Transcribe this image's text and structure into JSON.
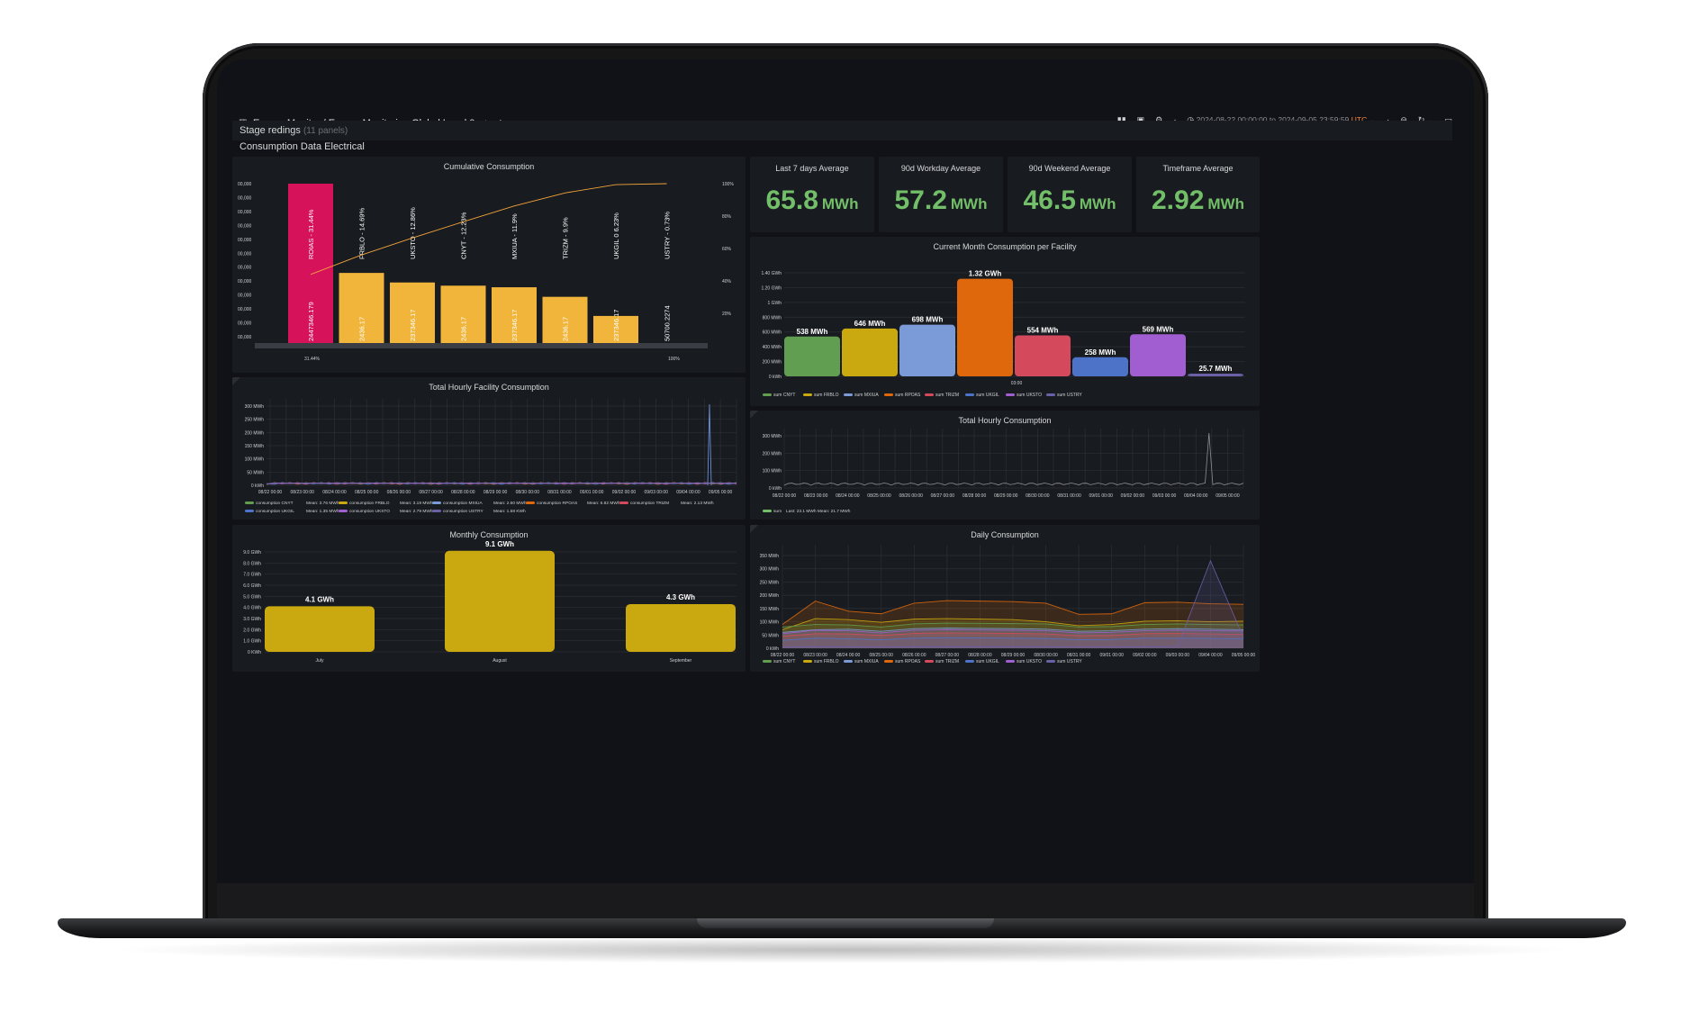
{
  "header": {
    "breadcrumb": "Energy Monitor / Energy Monitoring Global Level 0",
    "time_range": "2024-08-22 00:00:00 to 2024-09-05 23:59:59",
    "timezone": "UTC"
  },
  "rows": {
    "stage": {
      "title": "Stage redings",
      "count": "(11 panels)"
    },
    "consumption": {
      "title": "Consumption Data Electrical"
    }
  },
  "colors": {
    "green": "#73bf69",
    "yellow": "#d4a910",
    "pareto_yellow": "#f2b53b",
    "pareto_pink": "#d6125a",
    "blue": "#6d8fd6",
    "orange": "#e0680c",
    "red": "#d44a5c",
    "purple": "#a15ed0"
  },
  "stats": [
    {
      "label": "Last 7 days Average",
      "value": "65.8",
      "unit": "MWh"
    },
    {
      "label": "90d Workday Average",
      "value": "57.2",
      "unit": "MWh"
    },
    {
      "label": "90d Weekend Average",
      "value": "46.5",
      "unit": "MWh"
    },
    {
      "label": "Timeframe Average",
      "value": "2.92",
      "unit": "MWh"
    }
  ],
  "panels": {
    "cumulative": {
      "title": "Cumulative Consumption"
    },
    "current_month": {
      "title": "Current Month Consumption per Facility"
    },
    "hourly_facility": {
      "title": "Total Hourly Facility Consumption"
    },
    "hourly_total": {
      "title": "Total Hourly Consumption"
    },
    "monthly": {
      "title": "Monthly Consumption"
    },
    "daily": {
      "title": "Daily Consumption"
    }
  },
  "chart_data": [
    {
      "id": "cumulative",
      "type": "bar",
      "title": "Cumulative Consumption",
      "categories": [
        "ROIAS - 31.44%",
        "FRBLO - 14.69%",
        "UKSTO - 12.86%",
        "CNYT - 12.23%",
        "MXIUA - 11.9%",
        "TRIZM - 9.9%",
        "UKGIL 0 6.23%",
        "USTRY - 0.73%"
      ],
      "value_labels": [
        "2447346.179",
        "2436.17",
        "237346.17",
        "2436.17",
        "237346.17",
        "2436.17",
        "237346.17",
        "50700.2274"
      ],
      "values": [
        100,
        44,
        38,
        36,
        35,
        29,
        17,
        0
      ],
      "cumulative_pct": [
        31.44,
        46.13,
        58.99,
        71.22,
        83.12,
        93.02,
        99.25,
        100
      ],
      "y_ticks": [
        "00,000",
        "00,000",
        "00,000",
        "00,000",
        "00,000",
        "00,000",
        "00,000",
        "00,000",
        "00,000",
        "00,000",
        "00,000",
        "00,000"
      ],
      "y2_ticks": [
        "100%",
        "80%",
        "60%",
        "40%",
        "20%"
      ],
      "x_ticks": [
        "31.44%",
        "100%"
      ]
    },
    {
      "id": "current_month",
      "type": "bar",
      "title": "Current Month Consumption per Facility",
      "categories": [
        "sum CNYT",
        "sum FRBLO",
        "sum MXIUA",
        "sum RPOAS",
        "sum TRIZM",
        "sum UKGIL",
        "sum UKSTO",
        "sum USTRY"
      ],
      "values": [
        538,
        646,
        698,
        1320,
        554,
        258,
        569,
        25.7
      ],
      "labels": [
        "538 MWh",
        "646 MWh",
        "698 MWh",
        "1.32 GWh",
        "554 MWh",
        "258 MWh",
        "569 MWh",
        "25.7 MWh"
      ],
      "colors": [
        "#629e51",
        "#c9a90f",
        "#7b9ad8",
        "#e0680c",
        "#d44a5c",
        "#4d73c9",
        "#a15ed0",
        "#6b5fa6"
      ],
      "y_ticks": [
        "0 kWh",
        "200 MWh",
        "400 MWh",
        "600 MWh",
        "800 MWh",
        "1 GWh",
        "1.20 GWh",
        "1.40 GWh"
      ],
      "ylim": [
        0,
        1400
      ],
      "x_ticks": [
        "03:00"
      ]
    },
    {
      "id": "hourly_facility",
      "type": "line",
      "title": "Total Hourly Facility Consumption",
      "x": [
        "08/22 00:00",
        "08/23 00:00",
        "08/24 00:00",
        "08/25 00:00",
        "08/26 00:00",
        "08/27 00:00",
        "08/28 00:00",
        "08/29 00:00",
        "08/30 00:00",
        "08/31 00:00",
        "09/01 00:00",
        "09/02 00:00",
        "09/03 00:00",
        "09/04 00:00",
        "09/05 00:00"
      ],
      "y_ticks": [
        "0 kWh",
        "50 MWh",
        "100 MWh",
        "150 MWh",
        "200 MWh",
        "250 MWh",
        "300 MWh"
      ],
      "ylim": [
        0,
        300
      ],
      "legend": [
        {
          "name": "consumption CNYT",
          "mean": "Mean: 3.76 MWh",
          "color": "#629e51"
        },
        {
          "name": "consumption FRBLO",
          "mean": "Mean: 3.19 MWh",
          "color": "#c9a90f"
        },
        {
          "name": "consumption MXIUA",
          "mean": "Mean: 2.60 MWh",
          "color": "#7b9ad8"
        },
        {
          "name": "consumption RPOAS",
          "mean": "Mean: 6.82 MWh",
          "color": "#e0680c"
        },
        {
          "name": "consumption TRIZM",
          "mean": "Mean: 2.13 MWh",
          "color": "#d44a5c"
        },
        {
          "name": "consumption UKGIL",
          "mean": "Mean: 1.35 MWh",
          "color": "#4d73c9"
        },
        {
          "name": "consumption UKSTO",
          "mean": "Mean: 2.79 MWh",
          "color": "#a15ed0"
        },
        {
          "name": "consumption USTRY",
          "mean": "Mean: 1.58 KWh",
          "color": "#6b5fa6"
        }
      ]
    },
    {
      "id": "hourly_total",
      "type": "line",
      "title": "Total Hourly Consumption",
      "x": [
        "08/22 00:00",
        "08/23 00:00",
        "08/24 00:00",
        "08/25 00:00",
        "08/26 00:00",
        "08/27 00:00",
        "08/28 00:00",
        "08/29 00:00",
        "08/30 00:00",
        "08/31 00:00",
        "09/01 00:00",
        "09/02 00:00",
        "09/03 00:00",
        "09/04 00:00",
        "09/05 00:00"
      ],
      "y_ticks": [
        "0 kWh",
        "100 MWh",
        "200 MWh",
        "300 MWh"
      ],
      "ylim": [
        0,
        300
      ],
      "legend": [
        {
          "name": "sum",
          "stats": "Last: 23.1 MWh Mean: 21.7 MWh",
          "color": "#73bf69"
        }
      ]
    },
    {
      "id": "monthly",
      "type": "bar",
      "title": "Monthly Consumption",
      "categories": [
        "July",
        "August",
        "September"
      ],
      "values": [
        4.1,
        9.1,
        4.3
      ],
      "labels": [
        "4.1 GWh",
        "9.1 GWh",
        "4.3 GWh"
      ],
      "y_ticks": [
        "0 KWh",
        "1.0 GWh",
        "2.0 GWh",
        "3.0 GWh",
        "4.0 GWh",
        "5.0 GWh",
        "6.0 GWh",
        "7.0 GWh",
        "8.0 GWh",
        "9.0 GWh"
      ],
      "ylim": [
        0,
        9
      ]
    },
    {
      "id": "daily",
      "type": "area",
      "title": "Daily Consumption",
      "x": [
        "08/22 00:00",
        "08/23 00:00",
        "08/24 00:00",
        "08/25 00:00",
        "08/26 00:00",
        "08/27 00:00",
        "08/28 00:00",
        "08/29 00:00",
        "08/30 00:00",
        "08/31 00:00",
        "09/01 00:00",
        "09/02 00:00",
        "09/03 00:00",
        "09/04 00:00",
        "09/05 00:00"
      ],
      "y_ticks": [
        "0 kWh",
        "50 MWh",
        "100 MWh",
        "150 MWh",
        "200 MWh",
        "250 MWh",
        "300 MWh",
        "350 MWh"
      ],
      "ylim": [
        0,
        350
      ],
      "series": [
        {
          "name": "sum CNYT",
          "color": "#629e51",
          "values": [
            80,
            90,
            88,
            80,
            92,
            95,
            94,
            93,
            92,
            80,
            82,
            90,
            92,
            90,
            88
          ]
        },
        {
          "name": "sum FRBLO",
          "color": "#c9a90f",
          "values": [
            70,
            112,
            108,
            98,
            110,
            112,
            110,
            108,
            100,
            85,
            90,
            102,
            104,
            100,
            102
          ]
        },
        {
          "name": "sum MXIUA",
          "color": "#7b9ad8",
          "values": [
            60,
            70,
            72,
            64,
            74,
            76,
            75,
            74,
            72,
            64,
            66,
            72,
            74,
            72,
            70
          ]
        },
        {
          "name": "sum RPOAS",
          "color": "#e0680c",
          "values": [
            90,
            178,
            140,
            130,
            170,
            180,
            178,
            176,
            170,
            128,
            130,
            172,
            174,
            168,
            166
          ]
        },
        {
          "name": "sum TRIZM",
          "color": "#d44a5c",
          "values": [
            45,
            55,
            54,
            48,
            56,
            58,
            57,
            56,
            54,
            47,
            48,
            55,
            56,
            54,
            52
          ]
        },
        {
          "name": "sum UKGIL",
          "color": "#4d73c9",
          "values": [
            30,
            38,
            36,
            32,
            38,
            40,
            39,
            38,
            37,
            32,
            33,
            38,
            38,
            37,
            36
          ]
        },
        {
          "name": "sum UKSTO",
          "color": "#a15ed0",
          "values": [
            55,
            68,
            66,
            58,
            68,
            70,
            69,
            68,
            66,
            58,
            60,
            66,
            68,
            66,
            65
          ]
        },
        {
          "name": "sum USTRY",
          "color": "#6b5fa6",
          "values": [
            5,
            6,
            6,
            5,
            6,
            6,
            6,
            6,
            6,
            5,
            5,
            6,
            6,
            330,
            40
          ]
        }
      ]
    }
  ]
}
